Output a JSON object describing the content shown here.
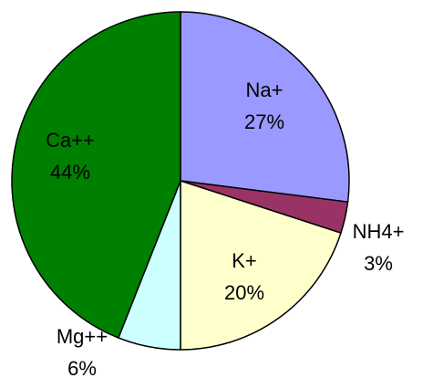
{
  "chart_data": {
    "type": "pie",
    "categories": [
      "Na+",
      "NH4+",
      "K+",
      "Mg++",
      "Ca++"
    ],
    "values": [
      27,
      3,
      20,
      6,
      44
    ],
    "value_labels": [
      "27%",
      "3%",
      "20%",
      "6%",
      "44%"
    ],
    "colors": [
      "#9999ff",
      "#993366",
      "#ffffcc",
      "#ccffff",
      "#008000"
    ]
  }
}
